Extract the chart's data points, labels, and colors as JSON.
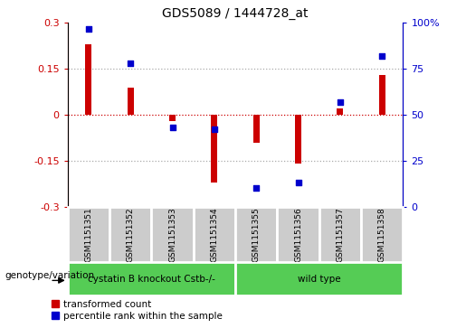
{
  "title": "GDS5089 / 1444728_at",
  "samples": [
    "GSM1151351",
    "GSM1151352",
    "GSM1151353",
    "GSM1151354",
    "GSM1151355",
    "GSM1151356",
    "GSM1151357",
    "GSM1151358"
  ],
  "transformed_count": [
    0.23,
    0.09,
    -0.02,
    -0.22,
    -0.09,
    -0.16,
    0.02,
    0.13
  ],
  "percentile_rank": [
    97,
    78,
    43,
    42,
    10,
    13,
    57,
    82
  ],
  "bar_color": "#cc0000",
  "dot_color": "#0000cc",
  "ylim_left": [
    -0.3,
    0.3
  ],
  "ylim_right": [
    0,
    100
  ],
  "yticks_left": [
    -0.3,
    -0.15,
    0.0,
    0.15,
    0.3
  ],
  "yticks_right": [
    0,
    25,
    50,
    75,
    100
  ],
  "ytick_labels_left": [
    "-0.3",
    "-0.15",
    "0",
    "0.15",
    "0.3"
  ],
  "ytick_labels_right": [
    "0",
    "25",
    "50",
    "75",
    "100%"
  ],
  "hlines": [
    0.15,
    0.0,
    -0.15
  ],
  "hline_colors": [
    "#aaaaaa",
    "#cc0000",
    "#aaaaaa"
  ],
  "hline_styles": [
    "dotted",
    "dotted",
    "dotted"
  ],
  "group1_samples": [
    0,
    1,
    2,
    3
  ],
  "group2_samples": [
    4,
    5,
    6,
    7
  ],
  "group1_label": "cystatin B knockout Cstb-/-",
  "group2_label": "wild type",
  "group_label_prefix": "genotype/variation",
  "group_color": "#55cc55",
  "sample_bg_color": "#cccccc",
  "legend_red_label": "transformed count",
  "legend_blue_label": "percentile rank within the sample",
  "bar_width": 0.15
}
